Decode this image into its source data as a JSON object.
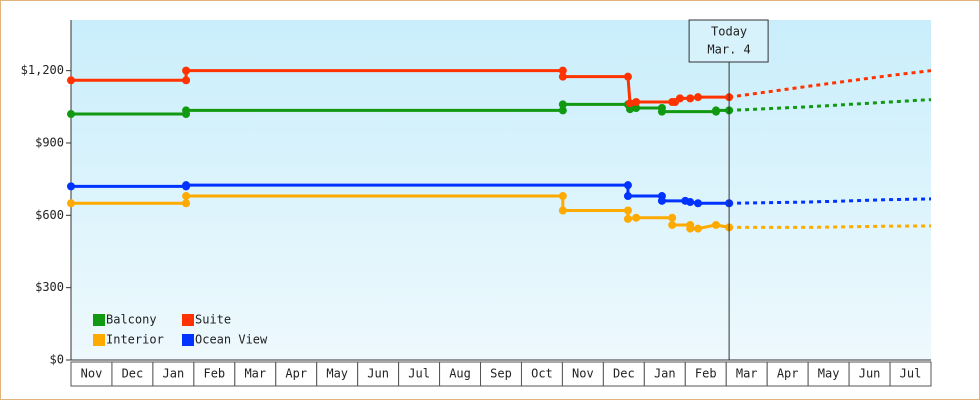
{
  "chart_data": {
    "type": "line",
    "categories": [
      "Nov",
      "Dec",
      "Jan",
      "Feb",
      "Mar",
      "Apr",
      "May",
      "Jun",
      "Jul",
      "Aug",
      "Sep",
      "Oct",
      "Nov",
      "Dec",
      "Jan",
      "Feb",
      "Mar",
      "Apr",
      "May",
      "Jun",
      "Jul"
    ],
    "xlim": [
      0,
      21
    ],
    "ylim": [
      0,
      1410
    ],
    "yticks": [
      {
        "value": 0,
        "label": "$0"
      },
      {
        "value": 300,
        "label": "$300"
      },
      {
        "value": 600,
        "label": "$600"
      },
      {
        "value": 900,
        "label": "$900"
      },
      {
        "value": 1200,
        "label": "$1,200"
      }
    ],
    "annotation": {
      "lines": [
        "Today",
        "Mar. 4"
      ],
      "x": 16.07
    },
    "legend": "lower left",
    "series": [
      {
        "name": "Balcony",
        "color": "#119911",
        "x": [
          0,
          2.81,
          2.81,
          12.01,
          12.01,
          13.6,
          13.65,
          13.8,
          14.43,
          14.43,
          15.75,
          15.75,
          16.07
        ],
        "values": [
          1020,
          1020,
          1035,
          1035,
          1060,
          1060,
          1040,
          1045,
          1045,
          1030,
          1030,
          1035,
          1035
        ],
        "forecast_x": [
          16.07,
          18,
          20,
          21
        ],
        "forecast_values": [
          1035,
          1050,
          1070,
          1080
        ]
      },
      {
        "name": "Suite",
        "color": "#ff3300",
        "x": [
          0,
          2.81,
          2.81,
          12.01,
          12.01,
          13.6,
          13.65,
          13.8,
          14.68,
          14.75,
          14.87,
          15.12,
          15.31,
          16.07
        ],
        "values": [
          1160,
          1160,
          1200,
          1200,
          1175,
          1175,
          1065,
          1070,
          1070,
          1070,
          1085,
          1085,
          1090,
          1090
        ],
        "forecast_x": [
          16.07,
          18,
          20,
          21
        ],
        "forecast_values": [
          1090,
          1135,
          1180,
          1200
        ]
      },
      {
        "name": "Interior",
        "color": "#ffaa00",
        "x": [
          0,
          2.81,
          2.81,
          12.01,
          12.01,
          13.6,
          13.6,
          13.8,
          14.68,
          14.68,
          15.12,
          15.12,
          15.31,
          15.75,
          16.07
        ],
        "values": [
          650,
          650,
          680,
          680,
          620,
          620,
          585,
          590,
          590,
          560,
          560,
          545,
          545,
          560,
          550
        ],
        "forecast_x": [
          16.07,
          18,
          20,
          21
        ],
        "forecast_values": [
          550,
          550,
          555,
          556
        ]
      },
      {
        "name": "Ocean View",
        "color": "#0033ff",
        "x": [
          0,
          2.81,
          2.81,
          13.6,
          13.6,
          14.43,
          14.43,
          15.0,
          15.12,
          15.31,
          16.07
        ],
        "values": [
          720,
          720,
          725,
          725,
          680,
          680,
          660,
          660,
          655,
          650,
          650
        ],
        "forecast_x": [
          16.07,
          18,
          20,
          21
        ],
        "forecast_values": [
          650,
          655,
          665,
          668
        ]
      }
    ]
  }
}
